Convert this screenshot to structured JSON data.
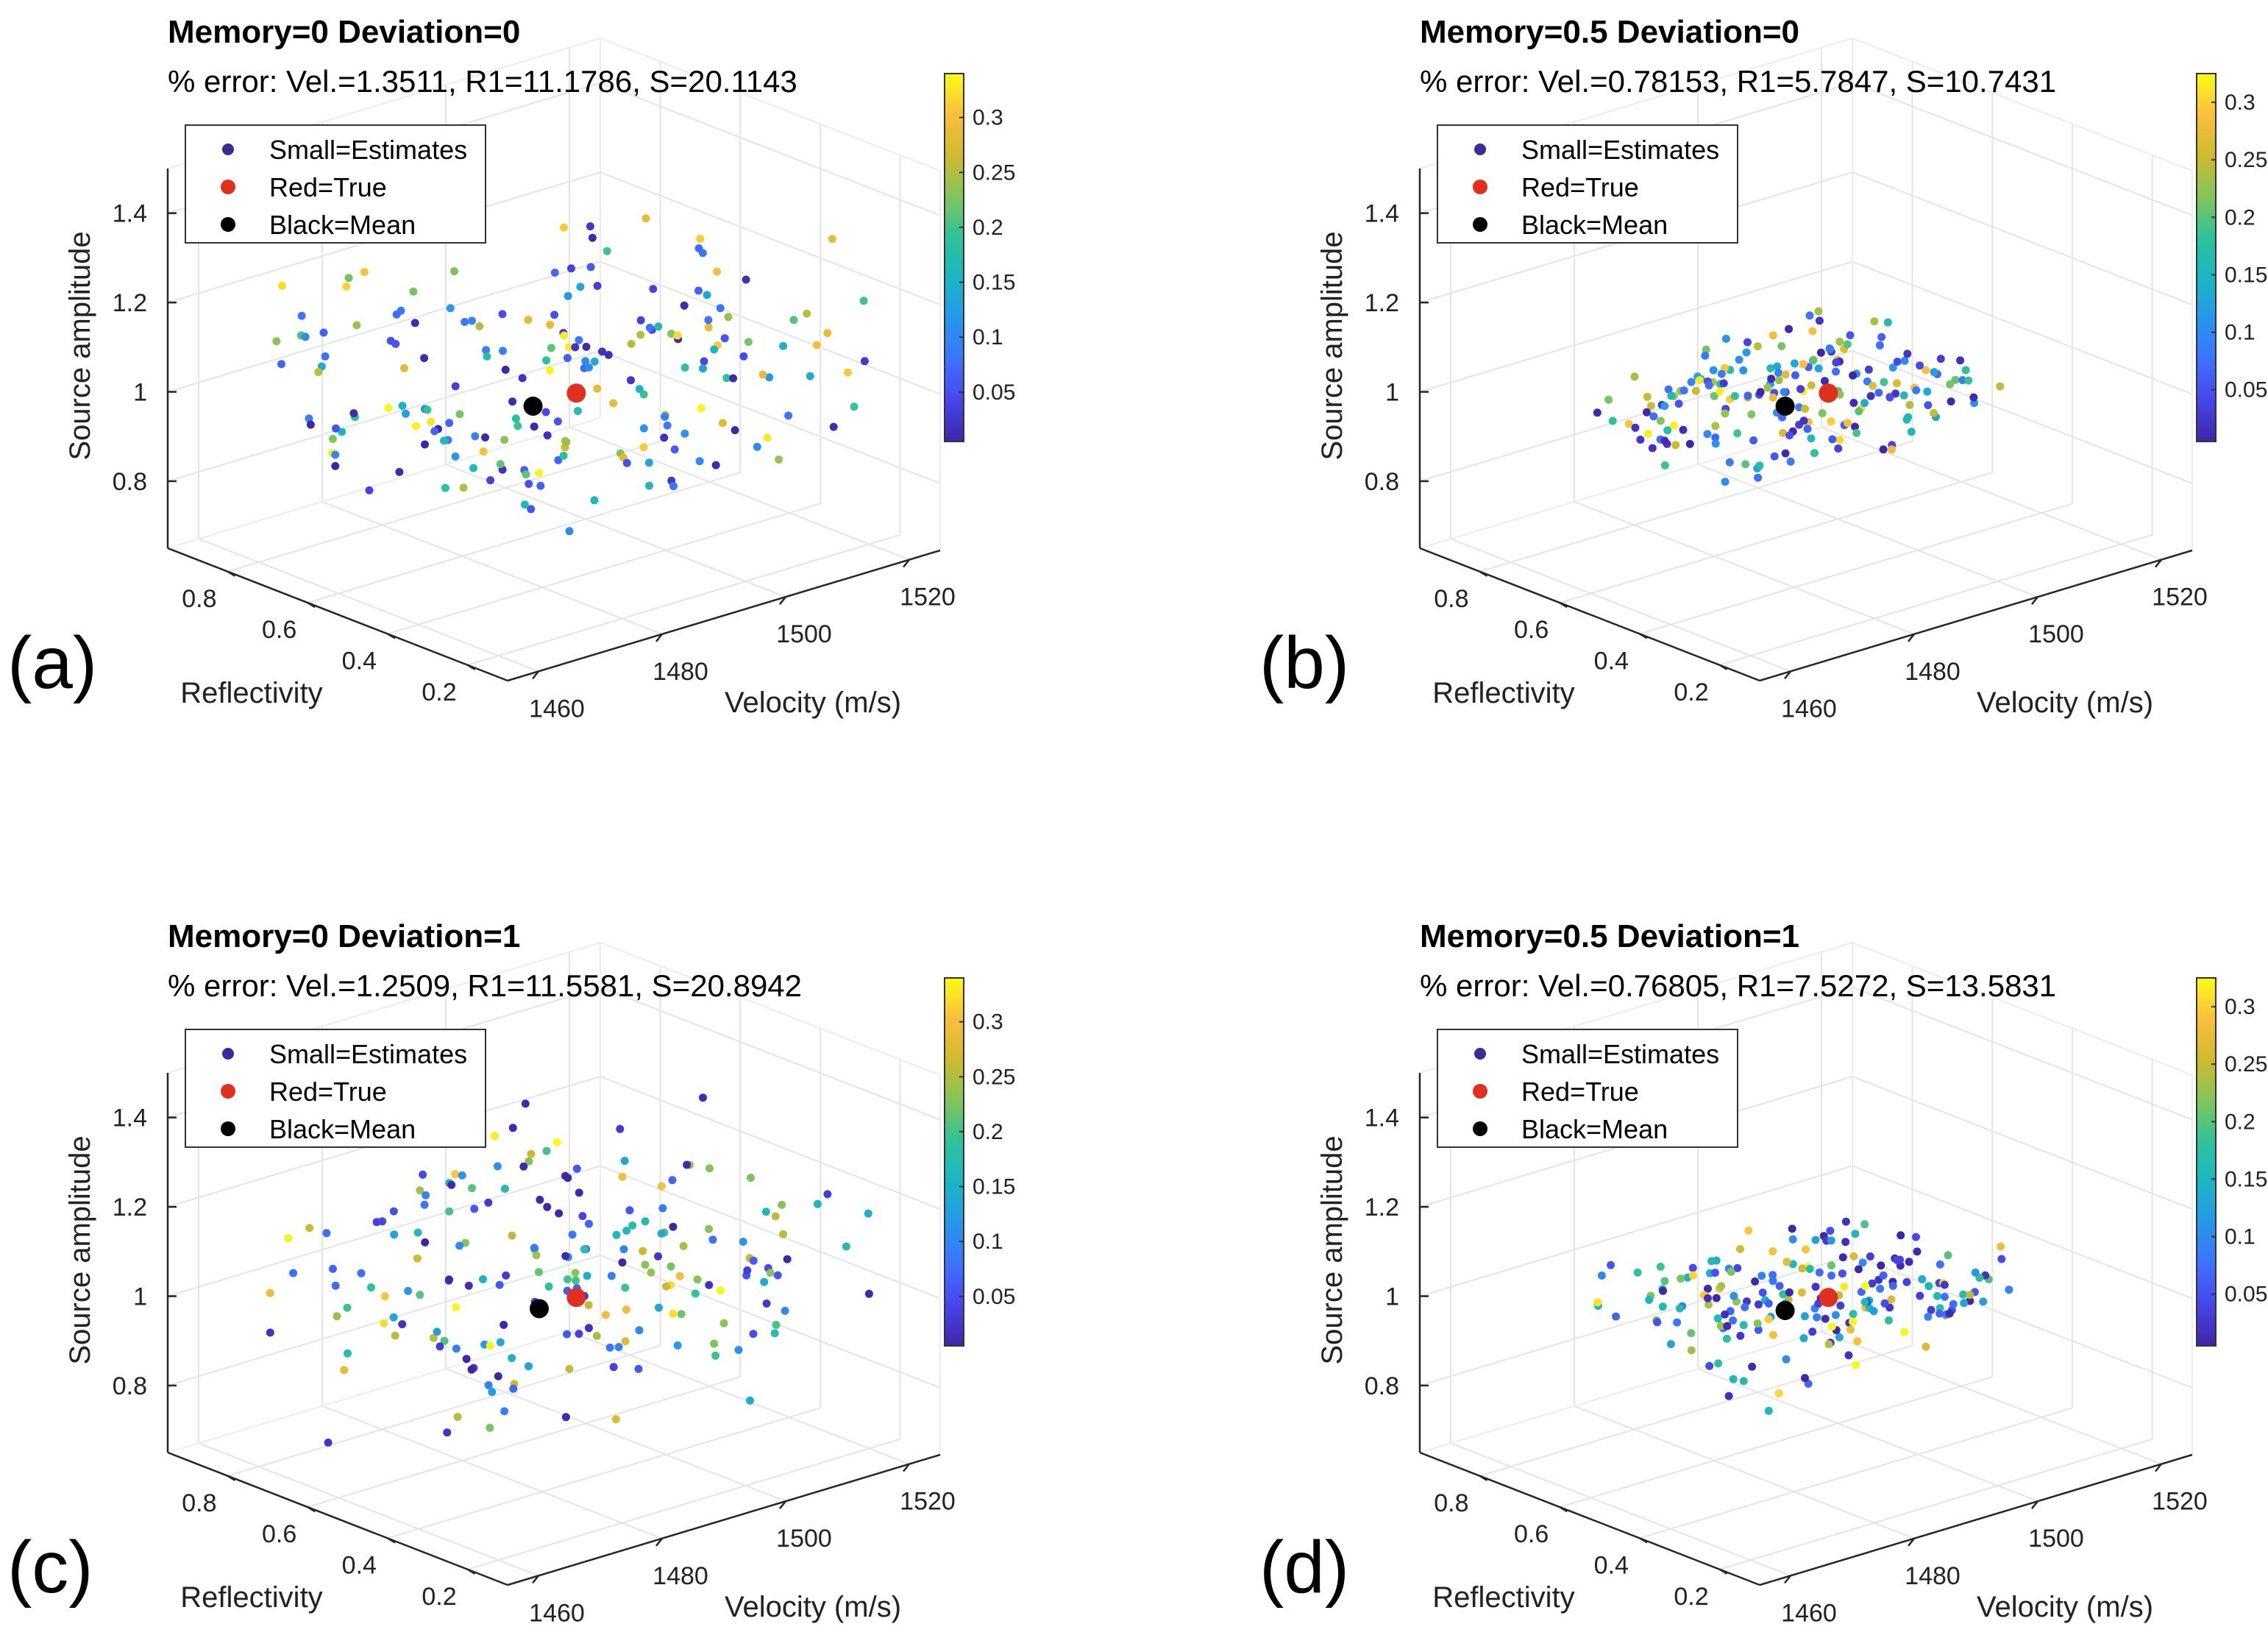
{
  "figure": {
    "legend_entries": [
      "Small=Estimates",
      "Red=True",
      "Black=Mean"
    ],
    "colors": {
      "estimates_legend": "#3b2a98",
      "true": "#e0301e",
      "mean": "#000000",
      "colormap": [
        "#3e26a8",
        "#4746eb",
        "#3e72ff",
        "#2797eb",
        "#1bb5c4",
        "#2ec298",
        "#82c55a",
        "#d0ba2f",
        "#fbbe3d",
        "#f9fb15"
      ]
    }
  },
  "chart_data": [
    {
      "type": "scatter",
      "panel": "(a)",
      "title": "Memory=0     Deviation=0",
      "subtitle": "% error:  Vel.=1.3511,  R1=11.1786,  S=20.1143",
      "xlabel": "Velocity (m/s)",
      "ylabel": "Reflectivity",
      "zlabel": "Source amplitude",
      "xticks": [
        "1460",
        "1480",
        "1500",
        "1520"
      ],
      "yticks": [
        "0.2",
        "0.4",
        "0.6",
        "0.8"
      ],
      "zticks": [
        "0.8",
        "1",
        "1.2",
        "1.4"
      ],
      "xlim": [
        1455,
        1525
      ],
      "ylim": [
        0.1,
        0.95
      ],
      "zlim": [
        0.65,
        1.5
      ],
      "colorbar": {
        "ticks": [
          "0.05",
          "0.1",
          "0.15",
          "0.2",
          "0.25",
          "0.3"
        ],
        "range": [
          0.005,
          0.34
        ]
      },
      "true_point": {
        "velocity": 1492,
        "reflectivity": 0.5,
        "amplitude": 1.0
      },
      "mean_point": {
        "velocity": 1485,
        "reflectivity": 0.5,
        "amplitude": 1.0
      },
      "estimates": {
        "count": 200,
        "velocity_range": [
          1462,
          1520
        ],
        "reflectivity_range": [
          0.15,
          0.9
        ],
        "amplitude_range": [
          0.7,
          1.4
        ]
      },
      "grid": true,
      "legend": "top-left"
    },
    {
      "type": "scatter",
      "panel": "(b)",
      "title": "Memory=0.5     Deviation=0",
      "subtitle": "% error:  Vel.=0.78153,  R1=5.7847,  S=10.7431",
      "xlabel": "Velocity (m/s)",
      "ylabel": "Reflectivity",
      "zlabel": "Source amplitude",
      "xticks": [
        "1460",
        "1480",
        "1500",
        "1520"
      ],
      "yticks": [
        "0.2",
        "0.4",
        "0.6",
        "0.8"
      ],
      "zticks": [
        "0.8",
        "1",
        "1.2",
        "1.4"
      ],
      "xlim": [
        1455,
        1525
      ],
      "ylim": [
        0.1,
        0.95
      ],
      "zlim": [
        0.65,
        1.5
      ],
      "colorbar": {
        "ticks": [
          "0.05",
          "0.1",
          "0.15",
          "0.2",
          "0.25",
          "0.3"
        ],
        "range": [
          0.005,
          0.325
        ]
      },
      "true_point": {
        "velocity": 1492,
        "reflectivity": 0.5,
        "amplitude": 1.0
      },
      "mean_point": {
        "velocity": 1485,
        "reflectivity": 0.5,
        "amplitude": 1.0
      },
      "estimates": {
        "count": 200,
        "velocity_range": [
          1468,
          1508
        ],
        "reflectivity_range": [
          0.3,
          0.75
        ],
        "amplitude_range": [
          0.8,
          1.2
        ]
      },
      "grid": true,
      "legend": "top-left"
    },
    {
      "type": "scatter",
      "panel": "(c)",
      "title": "Memory=0     Deviation=1",
      "subtitle": "% error:  Vel.=1.2509,  R1=11.5581,  S=20.8942",
      "xlabel": "Velocity (m/s)",
      "ylabel": "Reflectivity",
      "zlabel": "Source amplitude",
      "xticks": [
        "1460",
        "1480",
        "1500",
        "1520"
      ],
      "yticks": [
        "0.2",
        "0.4",
        "0.6",
        "0.8"
      ],
      "zticks": [
        "0.8",
        "1",
        "1.2",
        "1.4"
      ],
      "xlim": [
        1455,
        1525
      ],
      "ylim": [
        0.1,
        0.95
      ],
      "zlim": [
        0.65,
        1.5
      ],
      "colorbar": {
        "ticks": [
          "0.05",
          "0.1",
          "0.15",
          "0.2",
          "0.25",
          "0.3"
        ],
        "range": [
          0.005,
          0.34
        ]
      },
      "true_point": {
        "velocity": 1492,
        "reflectivity": 0.5,
        "amplitude": 1.0
      },
      "mean_point": {
        "velocity": 1486,
        "reflectivity": 0.5,
        "amplitude": 1.0
      },
      "estimates": {
        "count": 200,
        "velocity_range": [
          1462,
          1520
        ],
        "reflectivity_range": [
          0.15,
          0.9
        ],
        "amplitude_range": [
          0.7,
          1.4
        ]
      },
      "grid": true,
      "legend": "top-left"
    },
    {
      "type": "scatter",
      "panel": "(d)",
      "title": "Memory=0.5     Deviation=1",
      "subtitle": "% error:  Vel.=0.76805,  R1=7.5272,  S=13.5831",
      "xlabel": "Velocity (m/s)",
      "ylabel": "Reflectivity",
      "zlabel": "Source amplitude",
      "xticks": [
        "1460",
        "1480",
        "1500",
        "1520"
      ],
      "yticks": [
        "0.2",
        "0.4",
        "0.6",
        "0.8"
      ],
      "zticks": [
        "0.8",
        "1",
        "1.2",
        "1.4"
      ],
      "xlim": [
        1455,
        1525
      ],
      "ylim": [
        0.1,
        0.95
      ],
      "zlim": [
        0.65,
        1.5
      ],
      "colorbar": {
        "ticks": [
          "0.05",
          "0.1",
          "0.15",
          "0.2",
          "0.25",
          "0.3"
        ],
        "range": [
          0.005,
          0.325
        ]
      },
      "true_point": {
        "velocity": 1492,
        "reflectivity": 0.5,
        "amplitude": 1.0
      },
      "mean_point": {
        "velocity": 1485,
        "reflectivity": 0.5,
        "amplitude": 1.0
      },
      "estimates": {
        "count": 200,
        "velocity_range": [
          1468,
          1510
        ],
        "reflectivity_range": [
          0.3,
          0.75
        ],
        "amplitude_range": [
          0.8,
          1.2
        ]
      },
      "grid": true,
      "legend": "top-left"
    }
  ]
}
